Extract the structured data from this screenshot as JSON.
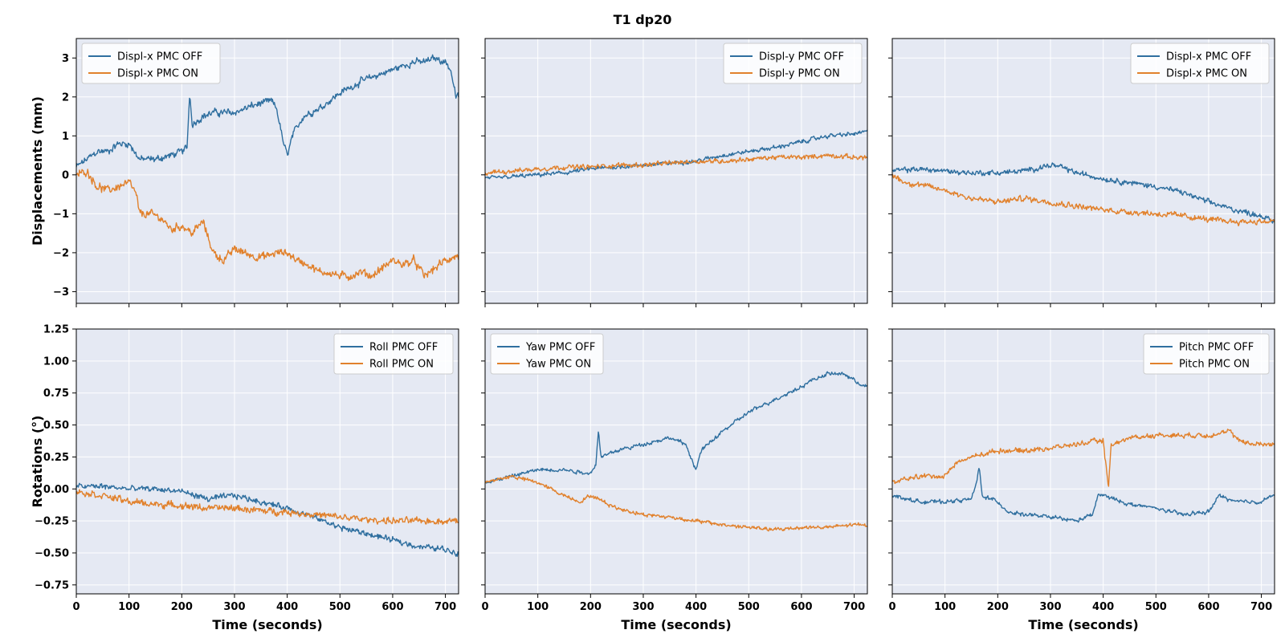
{
  "figure": {
    "title": "T1  dp20"
  },
  "colors": {
    "off": "#2f6f9f",
    "on": "#e1812c",
    "panel_bg": "#e5e9f3",
    "grid": "#ffffff"
  },
  "chart_data": [
    {
      "type": "line",
      "panel": "top-left",
      "xlabel": "",
      "ylabel": "Displacements (mm)",
      "xlim": [
        0,
        725
      ],
      "ylim": [
        -3.3,
        3.5
      ],
      "xticks": [],
      "yticks": [
        -3,
        -2,
        -1,
        0,
        1,
        2,
        3
      ],
      "yticklabels": [
        "−3",
        "−2",
        "−1",
        "0",
        "1",
        "2",
        "3"
      ],
      "legend_position": "top-left",
      "noise": [
        0.12,
        0.14
      ],
      "series": [
        {
          "name": "Displ-x PMC OFF",
          "color_key": "off",
          "x": [
            0,
            20,
            40,
            60,
            80,
            100,
            120,
            150,
            180,
            200,
            210,
            215,
            220,
            240,
            260,
            300,
            340,
            370,
            380,
            390,
            395,
            400,
            410,
            430,
            460,
            500,
            540,
            580,
            600,
            620,
            640,
            660,
            680,
            700,
            710,
            720
          ],
          "y": [
            0.2,
            0.4,
            0.6,
            0.6,
            0.8,
            0.8,
            0.4,
            0.4,
            0.5,
            0.6,
            0.7,
            2.1,
            1.3,
            1.5,
            1.6,
            1.6,
            1.8,
            1.9,
            1.7,
            1.0,
            0.7,
            0.5,
            1.0,
            1.5,
            1.7,
            2.1,
            2.4,
            2.6,
            2.7,
            2.8,
            2.9,
            2.9,
            3.0,
            2.9,
            2.7,
            2.0
          ]
        },
        {
          "name": "Displ-x PMC ON",
          "color_key": "on",
          "x": [
            0,
            20,
            40,
            60,
            80,
            100,
            110,
            115,
            120,
            140,
            160,
            180,
            200,
            220,
            240,
            250,
            260,
            280,
            300,
            320,
            340,
            360,
            380,
            400,
            420,
            440,
            460,
            480,
            500,
            520,
            540,
            560,
            580,
            600,
            620,
            640,
            660,
            680,
            700,
            720
          ],
          "y": [
            0.0,
            0.1,
            -0.3,
            -0.4,
            -0.3,
            -0.2,
            -0.4,
            -0.6,
            -1.0,
            -1.0,
            -1.1,
            -1.4,
            -1.3,
            -1.5,
            -1.2,
            -1.6,
            -2.0,
            -2.2,
            -1.9,
            -2.0,
            -2.1,
            -2.1,
            -2.0,
            -2.0,
            -2.2,
            -2.3,
            -2.5,
            -2.5,
            -2.6,
            -2.6,
            -2.5,
            -2.6,
            -2.4,
            -2.2,
            -2.3,
            -2.2,
            -2.6,
            -2.4,
            -2.2,
            -2.1
          ]
        }
      ]
    },
    {
      "type": "line",
      "panel": "top-middle",
      "xlabel": "",
      "ylabel": "",
      "xlim": [
        0,
        725
      ],
      "ylim": [
        -3.3,
        3.5
      ],
      "xticks": [],
      "yticks": [],
      "legend_position": "top-right",
      "noise": [
        0.07,
        0.08
      ],
      "series": [
        {
          "name": "Displ-y PMC OFF",
          "color_key": "off",
          "x": [
            0,
            50,
            100,
            150,
            200,
            250,
            300,
            350,
            400,
            450,
            500,
            550,
            600,
            650,
            700,
            720
          ],
          "y": [
            -0.1,
            -0.05,
            0.0,
            0.05,
            0.15,
            0.2,
            0.25,
            0.3,
            0.35,
            0.5,
            0.6,
            0.7,
            0.85,
            1.0,
            1.05,
            1.1
          ]
        },
        {
          "name": "Displ-y PMC ON",
          "color_key": "on",
          "x": [
            0,
            50,
            100,
            150,
            200,
            250,
            300,
            350,
            400,
            450,
            500,
            550,
            600,
            650,
            700,
            720
          ],
          "y": [
            0.05,
            0.1,
            0.15,
            0.2,
            0.2,
            0.25,
            0.25,
            0.3,
            0.35,
            0.35,
            0.4,
            0.45,
            0.45,
            0.5,
            0.45,
            0.45
          ]
        }
      ]
    },
    {
      "type": "line",
      "panel": "top-right",
      "xlabel": "",
      "ylabel": "",
      "xlim": [
        0,
        725
      ],
      "ylim": [
        -3.3,
        3.5
      ],
      "xticks": [],
      "yticks": [],
      "legend_position": "top-right",
      "noise": [
        0.09,
        0.1
      ],
      "series": [
        {
          "name": "Displ-x PMC OFF",
          "color_key": "off",
          "x": [
            0,
            50,
            100,
            150,
            200,
            250,
            300,
            320,
            350,
            400,
            450,
            500,
            550,
            600,
            650,
            700,
            720
          ],
          "y": [
            0.1,
            0.15,
            0.1,
            0.05,
            0.05,
            0.1,
            0.25,
            0.2,
            0.05,
            -0.1,
            -0.2,
            -0.3,
            -0.45,
            -0.7,
            -0.9,
            -1.05,
            -1.2
          ]
        },
        {
          "name": "Displ-x PMC ON",
          "color_key": "on",
          "x": [
            0,
            25,
            50,
            100,
            150,
            200,
            250,
            300,
            350,
            400,
            450,
            500,
            550,
            600,
            650,
            700,
            720
          ],
          "y": [
            0.0,
            -0.2,
            -0.25,
            -0.4,
            -0.6,
            -0.7,
            -0.6,
            -0.7,
            -0.8,
            -0.9,
            -0.95,
            -1.0,
            -1.05,
            -1.15,
            -1.2,
            -1.2,
            -1.2
          ]
        }
      ]
    },
    {
      "type": "line",
      "panel": "bottom-left",
      "xlabel": "Time (seconds)",
      "ylabel": "Rotations (°)",
      "xlim": [
        0,
        725
      ],
      "ylim": [
        -0.82,
        1.25
      ],
      "xticks": [
        0,
        100,
        200,
        300,
        400,
        500,
        600,
        700
      ],
      "yticks": [
        -0.75,
        -0.5,
        -0.25,
        0.0,
        0.25,
        0.5,
        0.75,
        1.0,
        1.25
      ],
      "yticklabels": [
        "−0.75",
        "−0.50",
        "−0.25",
        "0.00",
        "0.25",
        "0.50",
        "0.75",
        "1.00",
        "1.25"
      ],
      "legend_position": "top-right",
      "noise": [
        0.03,
        0.035
      ],
      "series": [
        {
          "name": "Roll PMC OFF",
          "color_key": "off",
          "x": [
            0,
            50,
            100,
            150,
            200,
            250,
            300,
            350,
            400,
            450,
            500,
            550,
            600,
            650,
            700,
            720
          ],
          "y": [
            0.02,
            0.02,
            0.0,
            0.0,
            -0.02,
            -0.08,
            -0.05,
            -0.1,
            -0.15,
            -0.22,
            -0.3,
            -0.35,
            -0.4,
            -0.45,
            -0.47,
            -0.5
          ]
        },
        {
          "name": "Roll PMC ON",
          "color_key": "on",
          "x": [
            0,
            50,
            100,
            150,
            200,
            250,
            300,
            350,
            400,
            450,
            500,
            550,
            600,
            650,
            700,
            720
          ],
          "y": [
            -0.02,
            -0.05,
            -0.1,
            -0.12,
            -0.13,
            -0.15,
            -0.15,
            -0.17,
            -0.18,
            -0.2,
            -0.22,
            -0.24,
            -0.25,
            -0.25,
            -0.25,
            -0.25
          ]
        }
      ]
    },
    {
      "type": "line",
      "panel": "bottom-middle",
      "xlabel": "Time (seconds)",
      "ylabel": "",
      "xlim": [
        0,
        725
      ],
      "ylim": [
        -0.82,
        1.25
      ],
      "xticks": [
        0,
        100,
        200,
        300,
        400,
        500,
        600,
        700
      ],
      "yticks": [],
      "legend_position": "top-left",
      "noise": [
        0.02,
        0.02
      ],
      "series": [
        {
          "name": "Yaw PMC OFF",
          "color_key": "off",
          "x": [
            0,
            50,
            100,
            150,
            200,
            210,
            215,
            220,
            250,
            300,
            350,
            380,
            390,
            400,
            410,
            450,
            500,
            550,
            600,
            620,
            650,
            680,
            700,
            720
          ],
          "y": [
            0.05,
            0.1,
            0.15,
            0.15,
            0.12,
            0.2,
            0.45,
            0.25,
            0.3,
            0.35,
            0.4,
            0.35,
            0.25,
            0.15,
            0.3,
            0.45,
            0.6,
            0.7,
            0.8,
            0.85,
            0.9,
            0.9,
            0.85,
            0.8
          ]
        },
        {
          "name": "Yaw PMC ON",
          "color_key": "on",
          "x": [
            0,
            50,
            100,
            150,
            180,
            200,
            250,
            300,
            350,
            400,
            450,
            500,
            550,
            600,
            650,
            700,
            720
          ],
          "y": [
            0.05,
            0.1,
            0.05,
            -0.05,
            -0.1,
            -0.05,
            -0.15,
            -0.2,
            -0.22,
            -0.25,
            -0.28,
            -0.3,
            -0.32,
            -0.3,
            -0.3,
            -0.28,
            -0.28
          ]
        }
      ]
    },
    {
      "type": "line",
      "panel": "bottom-right",
      "xlabel": "Time (seconds)",
      "ylabel": "",
      "xlim": [
        0,
        725
      ],
      "ylim": [
        -0.82,
        1.25
      ],
      "xticks": [
        0,
        100,
        200,
        300,
        400,
        500,
        600,
        700
      ],
      "yticks": [],
      "legend_position": "top-right",
      "noise": [
        0.02,
        0.025
      ],
      "series": [
        {
          "name": "Pitch PMC OFF",
          "color_key": "off",
          "x": [
            0,
            50,
            100,
            150,
            160,
            165,
            170,
            200,
            220,
            250,
            300,
            350,
            380,
            390,
            400,
            450,
            500,
            550,
            600,
            620,
            650,
            700,
            720
          ],
          "y": [
            -0.05,
            -0.1,
            -0.1,
            -0.08,
            0.05,
            0.18,
            -0.05,
            -0.1,
            -0.18,
            -0.2,
            -0.22,
            -0.25,
            -0.2,
            -0.05,
            -0.05,
            -0.12,
            -0.15,
            -0.2,
            -0.18,
            -0.05,
            -0.1,
            -0.1,
            -0.05
          ]
        },
        {
          "name": "Pitch PMC ON",
          "color_key": "on",
          "x": [
            0,
            50,
            100,
            120,
            150,
            200,
            250,
            300,
            350,
            400,
            410,
            415,
            420,
            450,
            500,
            550,
            600,
            640,
            650,
            680,
            700,
            720
          ],
          "y": [
            0.05,
            0.1,
            0.1,
            0.2,
            0.25,
            0.3,
            0.3,
            0.32,
            0.35,
            0.38,
            0.0,
            0.35,
            0.35,
            0.4,
            0.42,
            0.42,
            0.42,
            0.45,
            0.4,
            0.35,
            0.35,
            0.35
          ]
        }
      ]
    }
  ]
}
